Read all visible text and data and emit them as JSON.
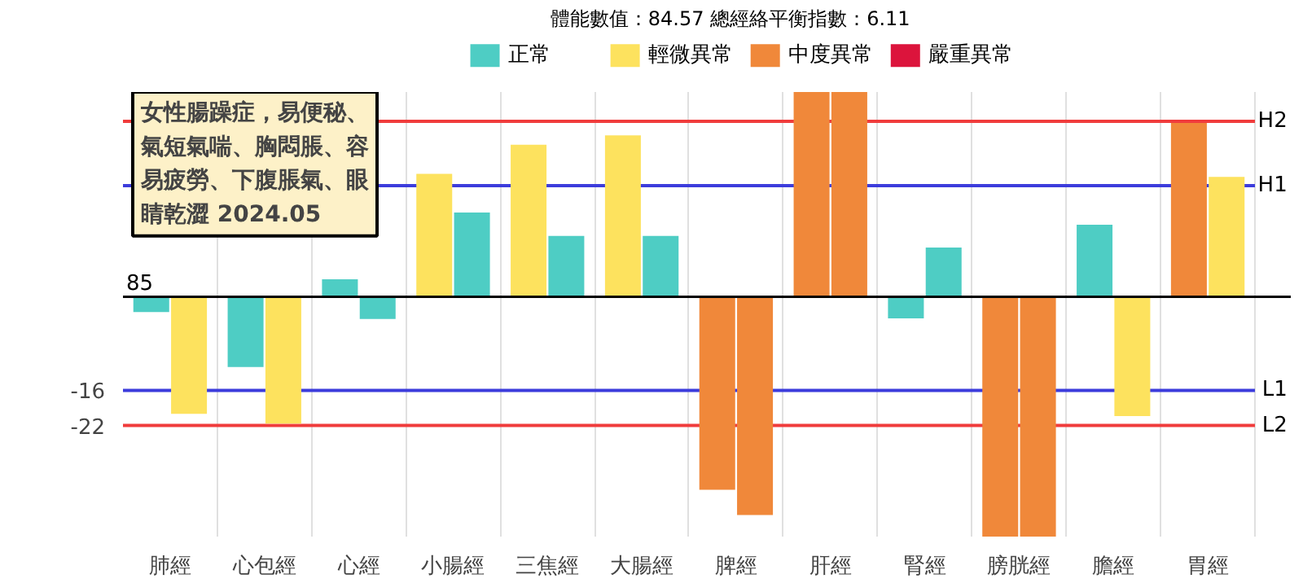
{
  "chart_data": {
    "type": "bar",
    "title": "女性腸躁症，易便秘、氣短氣喘、胸悶脹、容易疲勞、下腹脹氣、眼睛乾澀  2024.05",
    "subtitle": "體能數值：84.57 總經絡平衡指數：6.11",
    "categories": [
      "肺經",
      "心包經",
      "心經",
      "小腸經",
      "三焦經",
      "大腸經",
      "脾經",
      "肝經",
      "腎經",
      "膀胱經",
      "膽經",
      "胃經"
    ],
    "series": [
      {
        "values": [
          -2.6,
          -12,
          3,
          21,
          26,
          27.6,
          -33,
          35,
          -3.7,
          -41,
          12.3,
          29.7
        ],
        "colors": [
          "#4ecdc4",
          "#4ecdc4",
          "#4ecdc4",
          "#fde25e",
          "#fde25e",
          "#fde25e",
          "#f0883a",
          "#f0883a",
          "#4ecdc4",
          "#f0883a",
          "#4ecdc4",
          "#f0883a"
        ]
      },
      {
        "values": [
          -20,
          -21.7,
          -3.8,
          14.4,
          10.4,
          10.4,
          -37.3,
          35,
          8.4,
          -41,
          -20.4,
          20.5
        ],
        "colors": [
          "#fde25e",
          "#fde25e",
          "#4ecdc4",
          "#4ecdc4",
          "#4ecdc4",
          "#4ecdc4",
          "#f0883a",
          "#f0883a",
          "#4ecdc4",
          "#f0883a",
          "#fde25e",
          "#fde25e"
        ]
      },
      {
        "name": "正常",
        "color": "#4ecdc4",
        "values": [
          null,
          null,
          null,
          null,
          null,
          null,
          null,
          null,
          null,
          null,
          null,
          null
        ]
      },
      {
        "name": "輕微異常",
        "color": "#fde25e",
        "values": [
          null,
          null,
          null,
          null,
          null,
          null,
          null,
          null,
          null,
          null,
          null,
          null
        ]
      },
      {
        "name": "中度異常",
        "color": "#f0883a",
        "values": [
          null,
          null,
          null,
          null,
          null,
          null,
          null,
          null,
          null,
          null,
          null,
          null
        ]
      },
      {
        "name": "嚴重異常",
        "color": "#dc143c",
        "values": [
          null,
          null,
          null,
          null,
          null,
          null,
          null,
          null,
          null,
          null,
          null,
          null
        ]
      }
    ],
    "ylim": [
      -41,
      35
    ],
    "yticks": [
      -16,
      -22
    ],
    "annotations": [
      "85"
    ],
    "ref_lines": [
      {
        "axis": "y",
        "value": 30,
        "label": "H2",
        "color": "#f03c3c"
      },
      {
        "axis": "y",
        "value": 19,
        "label": "H1",
        "color": "#3c3cdc"
      },
      {
        "axis": "y",
        "value": -16,
        "label": "L1",
        "color": "#3c3cdc"
      },
      {
        "axis": "y",
        "value": -22,
        "label": "L2",
        "color": "#f03c3c"
      }
    ],
    "grid": "x",
    "legend": "top"
  }
}
